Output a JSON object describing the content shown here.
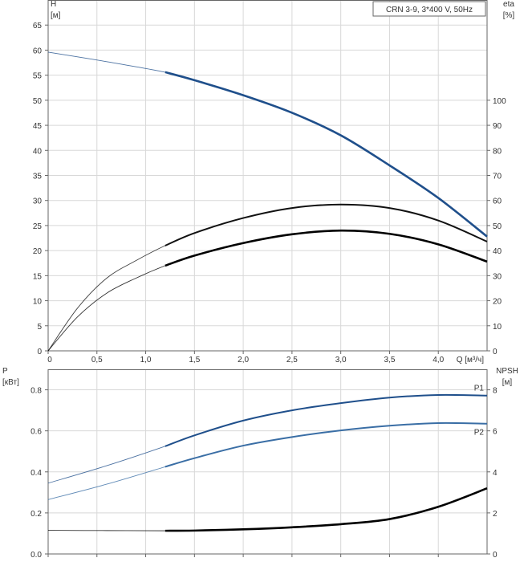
{
  "chart_data": [
    {
      "type": "line",
      "panel": "head-efficiency",
      "title": "CRN 3-9, 3*400 V, 50Hz",
      "x_axis": {
        "label": "Q [м³/ч]",
        "range": [
          0,
          4.5
        ],
        "ticks": [
          0,
          0.5,
          1.0,
          1.5,
          2.0,
          2.5,
          3.0,
          3.5,
          4.0
        ],
        "tick_labels": [
          "0",
          "0,5",
          "1,0",
          "1,5",
          "2,0",
          "2,5",
          "3,0",
          "3,5",
          "4,0"
        ]
      },
      "y_left": {
        "label": "H",
        "unit": "[м]",
        "range": [
          0,
          70
        ],
        "ticks": [
          0,
          5,
          10,
          15,
          20,
          25,
          30,
          35,
          40,
          45,
          50,
          55,
          60,
          65
        ],
        "tick_labels": [
          "0",
          "5",
          "10",
          "15",
          "20",
          "25",
          "30",
          "35",
          "40",
          "45",
          "50",
          "55",
          "60",
          "65"
        ]
      },
      "y_right": {
        "label": "eta",
        "unit": "[%]",
        "range": [
          0,
          140
        ],
        "ticks": [
          0,
          10,
          20,
          30,
          40,
          50,
          60,
          70,
          80,
          90,
          100
        ],
        "tick_labels": [
          "0",
          "10",
          "20",
          "30",
          "40",
          "50",
          "60",
          "70",
          "80",
          "90",
          "100"
        ]
      },
      "grid": true,
      "series": [
        {
          "name": "",
          "axis": "left",
          "color": "#1f4f8b",
          "x": [
            0,
            0.6,
            1.2,
            1.5,
            2.0,
            2.5,
            3.0,
            3.5,
            4.0,
            4.5
          ],
          "y": [
            59.6,
            57.7,
            55.6,
            54.0,
            51.0,
            47.5,
            43.0,
            37.0,
            30.5,
            22.8
          ],
          "operating_range": [
            1.2,
            4.5
          ]
        },
        {
          "name": "",
          "axis": "right",
          "color": "#111111",
          "x": [
            0,
            0.3,
            0.6,
            0.9,
            1.2,
            1.5,
            2.0,
            2.5,
            3.0,
            3.5,
            4.0,
            4.5
          ],
          "y": [
            0,
            17,
            29,
            36,
            42,
            47,
            53,
            57,
            58.4,
            57,
            52,
            43.6
          ],
          "operating_range": [
            1.2,
            4.5
          ]
        },
        {
          "name": "",
          "axis": "right",
          "color": "#000000",
          "x": [
            0,
            0.3,
            0.6,
            0.9,
            1.2,
            1.5,
            2.0,
            2.5,
            3.0,
            3.5,
            4.0,
            4.5
          ],
          "y": [
            0,
            13.5,
            23,
            29,
            34,
            38,
            43,
            46.5,
            48,
            46.7,
            42.5,
            35.6
          ],
          "operating_range": [
            1.2,
            4.5
          ]
        }
      ]
    },
    {
      "type": "line",
      "panel": "power-npsh",
      "x_axis": {
        "label": "",
        "range": [
          0,
          4.5
        ],
        "ticks": [
          0,
          0.5,
          1.0,
          1.5,
          2.0,
          2.5,
          3.0,
          3.5,
          4.0
        ],
        "tick_labels": []
      },
      "y_left": {
        "label": "P",
        "unit": "[кВт]",
        "range": [
          0,
          0.9
        ],
        "ticks": [
          0,
          0.2,
          0.4,
          0.6,
          0.8
        ],
        "tick_labels": [
          "0.0",
          "0.2",
          "0.4",
          "0.6",
          "0.8"
        ]
      },
      "y_right": {
        "label": "NPSH",
        "unit": "[м]",
        "range": [
          0,
          9
        ],
        "ticks": [
          0,
          2,
          4,
          6,
          8
        ],
        "tick_labels": [
          "0",
          "2",
          "4",
          "6",
          "8"
        ]
      },
      "grid": true,
      "series": [
        {
          "name": "P1",
          "axis": "left",
          "color": "#1f4f8b",
          "x": [
            0,
            0.6,
            1.2,
            1.5,
            2.0,
            2.5,
            3.0,
            3.5,
            4.0,
            4.5
          ],
          "y": [
            0.345,
            0.43,
            0.525,
            0.578,
            0.65,
            0.7,
            0.735,
            0.762,
            0.775,
            0.772
          ],
          "operating_range": [
            1.2,
            4.5
          ]
        },
        {
          "name": "P2",
          "axis": "left",
          "color": "#3a6ea5",
          "x": [
            0,
            0.6,
            1.2,
            1.5,
            2.0,
            2.5,
            3.0,
            3.5,
            4.0,
            4.5
          ],
          "y": [
            0.265,
            0.34,
            0.425,
            0.467,
            0.528,
            0.57,
            0.602,
            0.625,
            0.638,
            0.635
          ],
          "operating_range": [
            1.2,
            4.5
          ]
        },
        {
          "name": "",
          "axis": "right",
          "color": "#000000",
          "x": [
            0,
            0.6,
            1.2,
            1.5,
            2.0,
            2.5,
            3.0,
            3.5,
            4.0,
            4.5
          ],
          "y": [
            1.15,
            1.14,
            1.13,
            1.14,
            1.2,
            1.3,
            1.45,
            1.7,
            2.3,
            3.2
          ],
          "operating_range": [
            1.2,
            4.5
          ]
        }
      ]
    }
  ]
}
